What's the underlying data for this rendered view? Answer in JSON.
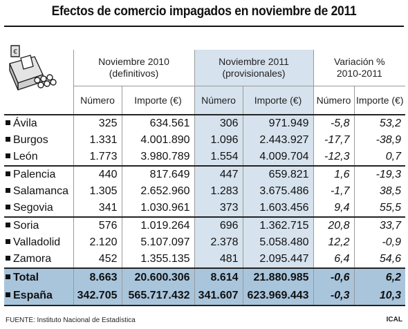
{
  "title": "Efectos de comercio impagados en noviembre de 2011",
  "headers": {
    "group1": [
      "Noviembre 2010",
      "(definitivos)"
    ],
    "group2": [
      "Noviembre 2011",
      "(provisionales)"
    ],
    "group3": [
      "Variación %",
      "2010-2011"
    ],
    "sub": [
      "Número",
      "Importe (€)",
      "Número",
      "Importe (€)",
      "Número",
      "Importe (€)"
    ]
  },
  "rows": [
    {
      "name": "Ávila",
      "n2010": "325",
      "i2010": "634.561",
      "n2011": "306",
      "i2011": "971.949",
      "vn": "-5,8",
      "vi": "53,2"
    },
    {
      "name": "Burgos",
      "n2010": "1.331",
      "i2010": "4.001.890",
      "n2011": "1.096",
      "i2011": "2.443.927",
      "vn": "-17,7",
      "vi": "-38,9"
    },
    {
      "name": "León",
      "n2010": "1.773",
      "i2010": "3.980.789",
      "n2011": "1.554",
      "i2011": "4.009.704",
      "vn": "-12,3",
      "vi": "0,7"
    },
    {
      "name": "Palencia",
      "n2010": "440",
      "i2010": "817.649",
      "n2011": "447",
      "i2011": "659.821",
      "vn": "1,6",
      "vi": "-19,3"
    },
    {
      "name": "Salamanca",
      "n2010": "1.305",
      "i2010": "2.652.960",
      "n2011": "1.283",
      "i2011": "3.675.486",
      "vn": "-1,7",
      "vi": "38,5"
    },
    {
      "name": "Segovia",
      "n2010": "341",
      "i2010": "1.030.961",
      "n2011": "373",
      "i2011": "1.603.456",
      "vn": "9,4",
      "vi": "55,5"
    },
    {
      "name": "Soria",
      "n2010": "576",
      "i2010": "1.019.264",
      "n2011": "696",
      "i2011": "1.362.715",
      "vn": "20,8",
      "vi": "33,7"
    },
    {
      "name": "Valladolid",
      "n2010": "2.120",
      "i2010": "5.107.097",
      "n2011": "2.378",
      "i2011": "5.058.480",
      "vn": "12,2",
      "vi": "-0,9"
    },
    {
      "name": "Zamora",
      "n2010": "452",
      "i2010": "1.355.135",
      "n2011": "481",
      "i2011": "2.095.447",
      "vn": "6,4",
      "vi": "54,6"
    }
  ],
  "totals": [
    {
      "name": "Total",
      "n2010": "8.663",
      "i2010": "20.600.306",
      "n2011": "8.614",
      "i2011": "21.880.985",
      "vn": "-0,6",
      "vi": "6,2"
    },
    {
      "name": "España",
      "n2010": "342.705",
      "i2010": "565.717.432",
      "n2011": "341.607",
      "i2011": "623.969.443",
      "vn": "-0,3",
      "vi": "10,3"
    }
  ],
  "footer": {
    "source": "FUENTE: Instituto Nacional de Estadística",
    "brand": "ICAL"
  },
  "illustration": {
    "icon": "cash-register-icon",
    "glyph": "€"
  },
  "colors": {
    "shade": "#d6e2ed",
    "total_band": "#a9c5dc"
  }
}
